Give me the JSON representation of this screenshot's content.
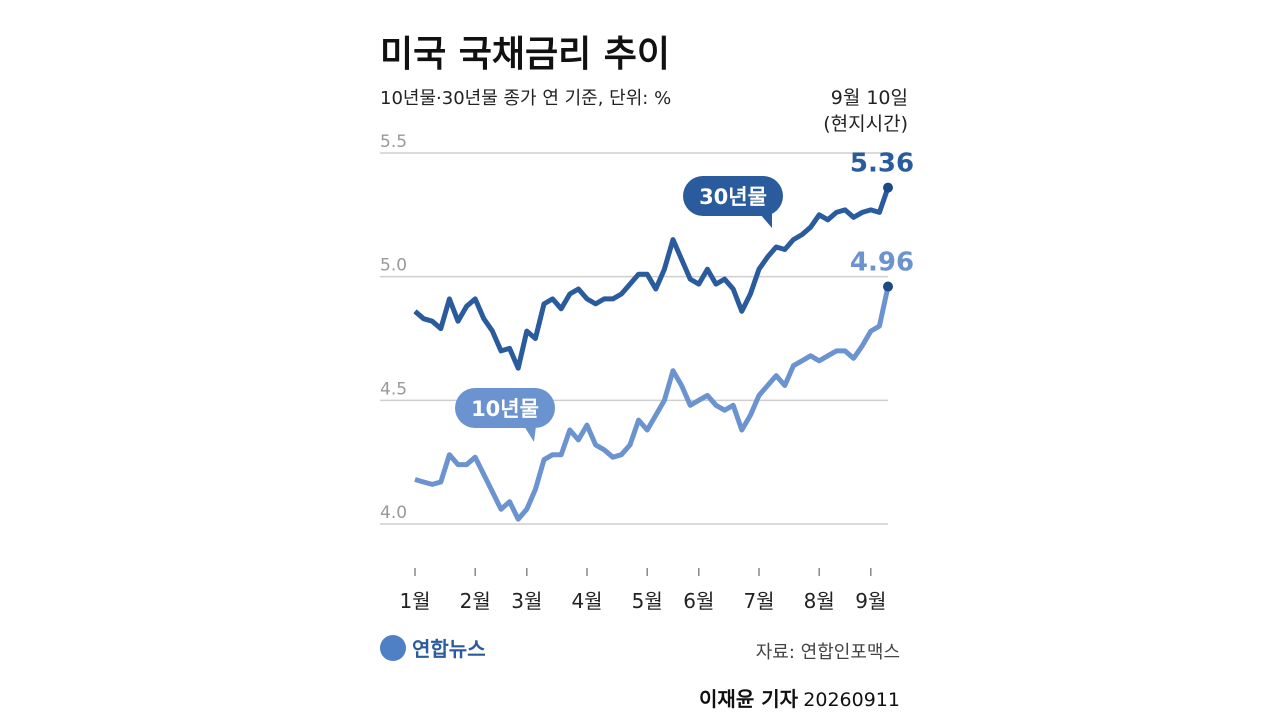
{
  "chart_data": {
    "type": "line",
    "title": "미국 국채금리 추이",
    "subtitle": "10년물·30년물 종가 연 기준, 단위: %",
    "annotation": [
      "9월 10일",
      "(현지시간)"
    ],
    "source": "자료: 연합인포맥스",
    "logo": "연합뉴스",
    "credit": "이재윤 기자",
    "date": "20260911",
    "categories": [
      "1월",
      null,
      null,
      null,
      null,
      null,
      null,
      "2월",
      null,
      null,
      null,
      null,
      null,
      "3월",
      null,
      null,
      null,
      null,
      null,
      null,
      "4월",
      null,
      null,
      null,
      null,
      null,
      null,
      "5월",
      null,
      null,
      null,
      null,
      null,
      "6월",
      null,
      null,
      null,
      null,
      null,
      null,
      "7월",
      null,
      null,
      null,
      null,
      null,
      null,
      "8월",
      null,
      null,
      null,
      null,
      null,
      "9월",
      null,
      null
    ],
    "ylim": [
      4.0,
      5.5
    ],
    "yticks": [
      5.5,
      {
        "value": 5,
        "label": "5.0"
      },
      4.5,
      {
        "value": 4,
        "label": "4.0"
      }
    ],
    "grid": true,
    "series": [
      {
        "name": "30년물",
        "color": "#2a5b9c",
        "values": [
          4.86,
          4.83,
          4.82,
          4.79,
          4.91,
          4.82,
          4.88,
          4.91,
          4.83,
          4.78,
          4.7,
          4.71,
          4.63,
          4.78,
          4.75,
          4.89,
          4.91,
          4.87,
          4.93,
          4.95,
          4.91,
          4.89,
          4.91,
          4.91,
          4.93,
          4.97,
          5.01,
          5.01,
          4.95,
          5.03,
          5.15,
          5.07,
          4.99,
          4.97,
          5.03,
          4.97,
          4.99,
          4.95,
          4.86,
          4.93,
          5.03,
          5.08,
          5.12,
          5.11,
          5.15,
          5.17,
          5.2,
          5.25,
          5.23,
          5.26,
          5.27,
          5.24,
          5.26,
          5.27,
          5.26,
          5.36
        ]
      },
      {
        "name": "10년물",
        "color": "#6b93cf",
        "values": [
          4.18,
          4.17,
          4.16,
          4.17,
          4.28,
          4.24,
          4.24,
          4.27,
          4.2,
          4.13,
          4.06,
          4.09,
          4.02,
          4.06,
          4.14,
          4.26,
          4.28,
          4.28,
          4.38,
          4.34,
          4.4,
          4.32,
          4.3,
          4.27,
          4.28,
          4.32,
          4.42,
          4.38,
          4.44,
          4.5,
          4.62,
          4.56,
          4.48,
          4.5,
          4.52,
          4.48,
          4.46,
          4.48,
          4.38,
          4.44,
          4.52,
          4.56,
          4.6,
          4.56,
          4.64,
          4.66,
          4.68,
          4.66,
          4.68,
          4.7,
          4.7,
          4.67,
          4.72,
          4.78,
          4.8,
          4.96
        ]
      }
    ]
  }
}
